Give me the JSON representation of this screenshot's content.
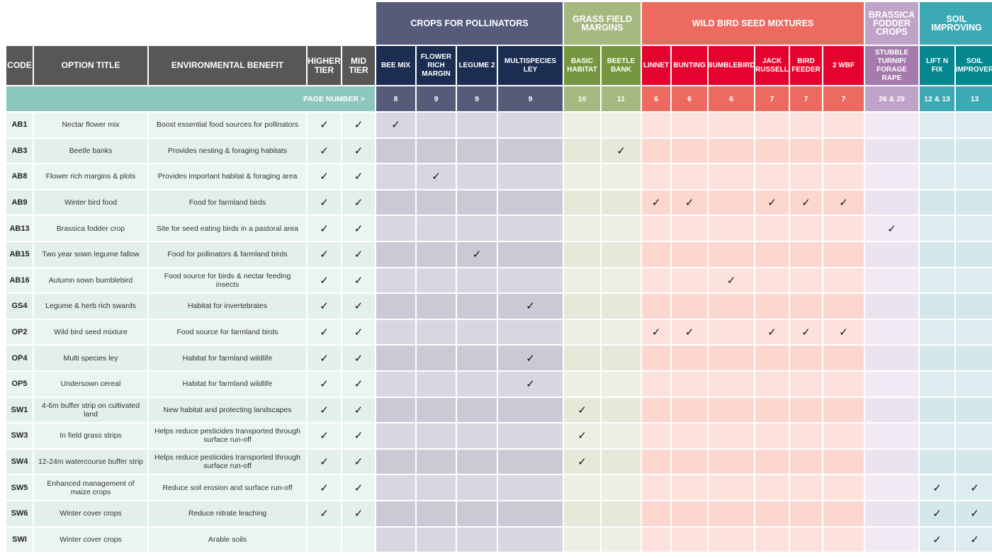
{
  "columns_left": {
    "code": "CODE",
    "title": "OPTION TITLE",
    "benefit": "ENVIRONMENTAL BENEFIT",
    "higher": "HIGHER TIER",
    "mid": "MID TIER"
  },
  "page_number_label": "PAGE NUMBER >",
  "check_mark": "✓",
  "groups": [
    {
      "label": "CROPS FOR POLLINATORS",
      "span": 4,
      "color": "#565b7a",
      "sub_color": "#1c2d52",
      "light": "#d8d6e0",
      "dark": "#cbc9d6"
    },
    {
      "label": "GRASS FIELD MARGINS",
      "span": 2,
      "color": "#a5b87f",
      "sub_color": "#76973f",
      "light": "#ebefe4",
      "dark": "#e4e9da"
    },
    {
      "label": "WILD BIRD SEED MIXTURES",
      "span": 6,
      "color": "#ec6a5f",
      "sub_color": "#e4032e",
      "light": "#fde1dc",
      "dark": "#fbd7cf"
    },
    {
      "label": "BRASSICA FODDER CROPS",
      "span": 1,
      "color": "#c0a3c8",
      "sub_color": "#a57aad",
      "light": "#f1eaf4",
      "dark": "#ebe3ef"
    },
    {
      "label": "SOIL IMPROVING",
      "span": 2,
      "color": "#3aa9b4",
      "sub_color": "#05878f",
      "light": "#deecef",
      "dark": "#d4e7ea"
    }
  ],
  "options": [
    {
      "label": "BEE MIX",
      "page": "8"
    },
    {
      "label": "FLOWER RICH MARGIN",
      "page": "9"
    },
    {
      "label": "LEGUME 2",
      "page": "9"
    },
    {
      "label": "MULTISPECIES LEY",
      "page": "9"
    },
    {
      "label": "BASIC HABITAT",
      "page": "10"
    },
    {
      "label": "BEETLE BANK",
      "page": "11"
    },
    {
      "label": "LINNET",
      "page": "6"
    },
    {
      "label": "BUNTING",
      "page": "6"
    },
    {
      "label": "BUMBLEBIRD",
      "page": "6"
    },
    {
      "label": "JACK RUSSELL",
      "page": "7"
    },
    {
      "label": "BIRD FEEDER",
      "page": "7"
    },
    {
      "label": "2 WBF",
      "page": "7"
    },
    {
      "label": "STUBBLE TURNIP/ FORAGE RAPE",
      "page": "26 & 29"
    },
    {
      "label": "LIFT N FIX",
      "page": "12 & 13"
    },
    {
      "label": "SOIL IMPROVER",
      "page": "13"
    }
  ],
  "rows": [
    {
      "code": "AB1",
      "title": "Nectar flower mix",
      "benefit": "Boost essential food sources for pollinators",
      "higher": true,
      "mid": true,
      "checks": [
        0
      ]
    },
    {
      "code": "AB3",
      "title": "Beetle banks",
      "benefit": "Provides nesting & foraging habitats",
      "higher": true,
      "mid": true,
      "checks": [
        5
      ]
    },
    {
      "code": "AB8",
      "title": "Flower rich margins & plots",
      "benefit": "Provides important habitat & foraging area",
      "higher": true,
      "mid": true,
      "checks": [
        1
      ]
    },
    {
      "code": "AB9",
      "title": "Winter bird food",
      "benefit": "Food for farmland birds",
      "higher": true,
      "mid": true,
      "checks": [
        6,
        7,
        9,
        10,
        11
      ]
    },
    {
      "code": "AB13",
      "title": "Brassica fodder crop",
      "benefit": "Site for seed eating birds in a pastoral area",
      "higher": true,
      "mid": true,
      "checks": [
        12
      ]
    },
    {
      "code": "AB15",
      "title": "Two year sown legume fallow",
      "benefit": "Food for pollinators & farmland birds",
      "higher": true,
      "mid": true,
      "checks": [
        2
      ]
    },
    {
      "code": "AB16",
      "title": "Autumn sown bumblebird",
      "benefit": "Food source for birds & nectar feeding insects",
      "higher": true,
      "mid": true,
      "checks": [
        8
      ]
    },
    {
      "code": "GS4",
      "title": "Legume & herb rich swards",
      "benefit": "Habitat for invertebrates",
      "higher": true,
      "mid": true,
      "checks": [
        3
      ]
    },
    {
      "code": "OP2",
      "title": "Wild bird seed mixture",
      "benefit": "Food source for farmland birds",
      "higher": true,
      "mid": true,
      "checks": [
        6,
        7,
        9,
        10,
        11
      ]
    },
    {
      "code": "OP4",
      "title": "Multi species ley",
      "benefit": "Habitat for farmland wildlife",
      "higher": true,
      "mid": true,
      "checks": [
        3
      ]
    },
    {
      "code": "OP5",
      "title": "Undersown cereal",
      "benefit": "Habitat for farmland wildlife",
      "higher": true,
      "mid": true,
      "checks": [
        3
      ]
    },
    {
      "code": "SW1",
      "title": "4-6m buffer strip on cultivated land",
      "benefit": "New habitat and protecting landscapes",
      "higher": true,
      "mid": true,
      "checks": [
        4
      ]
    },
    {
      "code": "SW3",
      "title": "In field grass strips",
      "benefit": "Helps reduce pesticides transported through surface run-off",
      "higher": true,
      "mid": true,
      "checks": [
        4
      ]
    },
    {
      "code": "SW4",
      "title": "12-24m watercourse buffer strip",
      "benefit": "Helps reduce pesticides transported through surface run-off",
      "higher": true,
      "mid": true,
      "checks": [
        4
      ]
    },
    {
      "code": "SW5",
      "title": "Enhanced management of maize crops",
      "benefit": "Reduce soil erosion and surface run-off",
      "higher": true,
      "mid": true,
      "checks": [
        13,
        14
      ]
    },
    {
      "code": "SW6",
      "title": "Winter cover crops",
      "benefit": "Reduce nitrate leaching",
      "higher": true,
      "mid": true,
      "checks": [
        13,
        14
      ]
    },
    {
      "code": "SWI",
      "title": "Winter cover crops",
      "benefit": "Arable soils",
      "higher": false,
      "mid": false,
      "checks": [
        13,
        14
      ]
    }
  ],
  "colors": {
    "left_header": "#575756",
    "page_row_left": "#8cc7bd",
    "left_light": "#eaf4f2",
    "left_dark": "#e2efec"
  }
}
